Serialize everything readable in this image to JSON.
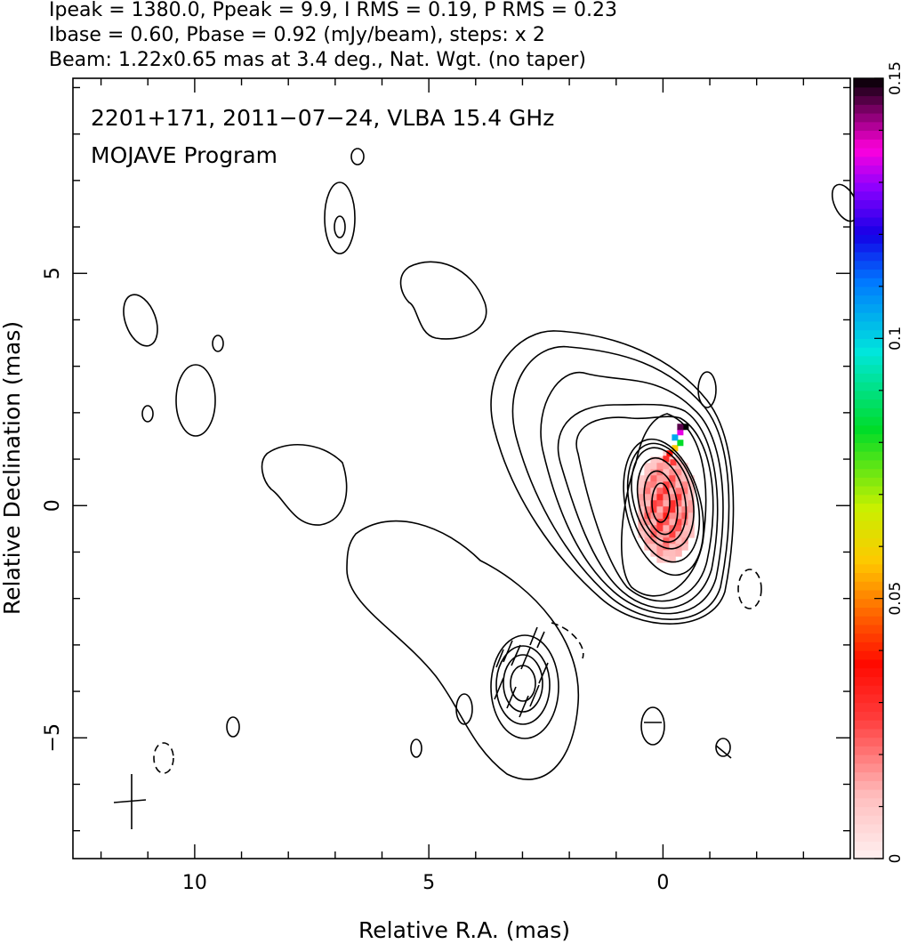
{
  "header": {
    "line1": "Ipeak = 1380.0, Ppeak = 9.9, I RMS = 0.19, P RMS = 0.23",
    "line2": "Ibase = 0.60, Pbase = 0.92 (mJy/beam), steps: x 2",
    "line3": "Beam: 1.22x0.65 mas at 3.4 deg., Nat. Wgt. (no taper)"
  },
  "chart_data": {
    "type": "heatmap",
    "annotation_line1": "2201+171, 2011−07−24, VLBA 15.4 GHz",
    "annotation_line2": "MOJAVE Program",
    "xlabel": "Relative R.A. (mas)",
    "ylabel": "Relative Declination (mas)",
    "xlim": [
      12.6,
      -4.0
    ],
    "ylim": [
      -7.6,
      9.2
    ],
    "x_ticks": [
      10,
      5,
      0
    ],
    "y_ticks": [
      5,
      0,
      -5
    ],
    "x_tick_labels": [
      "10",
      "5",
      "0"
    ],
    "y_tick_labels": [
      "5",
      "0",
      "−5"
    ],
    "colorbar": {
      "min": 0,
      "max": 0.15,
      "ticks": [
        0,
        0.05,
        0.1,
        0.15
      ],
      "tick_labels": [
        "0",
        "0.05",
        "0.1",
        "0.15"
      ]
    },
    "core": {
      "x": 0,
      "y": 0
    },
    "beam": {
      "major_mas": 1.22,
      "minor_mas": 0.65,
      "pa_deg": 3.4
    },
    "grid": false
  }
}
